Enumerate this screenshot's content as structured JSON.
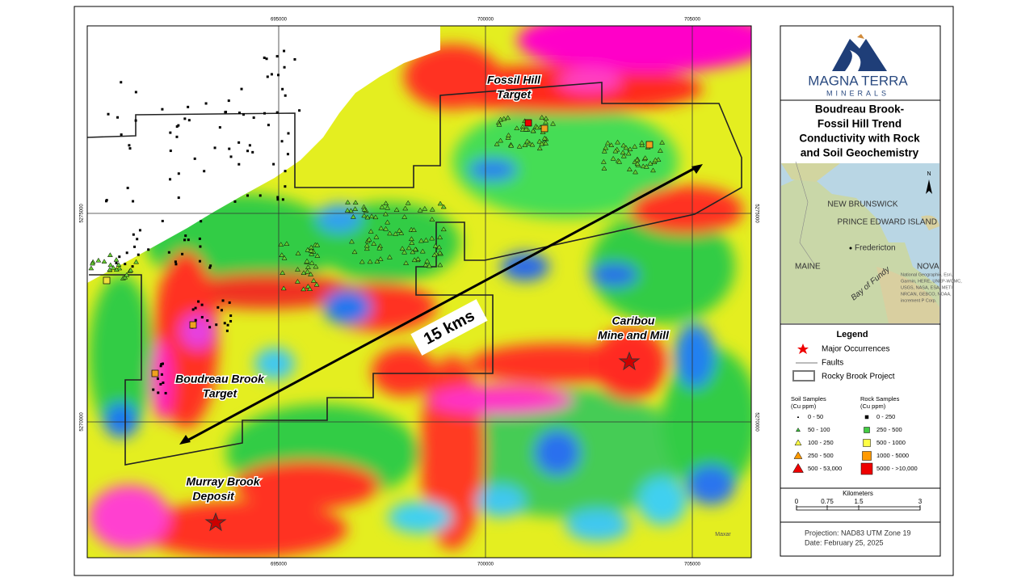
{
  "map": {
    "grid_labels": {
      "top": [
        "695000",
        "700000",
        "705000"
      ],
      "bottom": [
        "695000",
        "700000",
        "705000"
      ],
      "left": [
        "5275000",
        "5270000"
      ],
      "right": [
        "5275000",
        "5270000"
      ]
    },
    "labels": {
      "fossil_hill": [
        "Fossil Hill",
        "Target"
      ],
      "boudreau": [
        "Boudreau Brook",
        "Target"
      ],
      "caribou": [
        "Caribou",
        "Mine and Mill"
      ],
      "murray": [
        "Murray Brook",
        "Deposit"
      ],
      "distance": "15 kms",
      "credit": "Maxar"
    }
  },
  "panel": {
    "logo": {
      "name": "MAGNA TERRA",
      "sub": "MINERALS"
    },
    "title": [
      "Boudreau Brook-",
      "Fossil Hill Trend",
      "Conductivity with Rock",
      "and Soil Geochemistry"
    ],
    "inset": {
      "province": "NEW BRUNSWICK",
      "city": "Fredericton",
      "state": "MAINE",
      "pei": "PRINCE EDWARD ISLAND",
      "nova": "NOVA",
      "bay": "Bay of Fundy",
      "attribution": [
        "National Geographic, Esri,",
        "Garmin, HERE, UNEP-WCMC,",
        "USGS, NASA, ESA, METI,",
        "NRCAN, GEBCO, NOAA,",
        "increment P Corp."
      ],
      "north": "N"
    },
    "legend": {
      "title": "Legend",
      "items": [
        "Major Occurrences",
        "Faults",
        "Rocky Brook Project"
      ],
      "soil": {
        "title": [
          "Soil Samples",
          "(Cu ppm)"
        ],
        "classes": [
          "0 - 50",
          "50 - 100",
          "100 - 250",
          "250 - 500",
          "500 - 53,000"
        ]
      },
      "rock": {
        "title": [
          "Rock Samples",
          "(Cu ppm)"
        ],
        "classes": [
          "0 - 250",
          "250 - 500",
          "500 - 1000",
          "1000 - 5000",
          "5000 - >10,000"
        ]
      }
    },
    "scale": {
      "title": "Kilometers",
      "ticks": [
        "0",
        "0.75",
        "1.5",
        "3"
      ]
    },
    "projection": [
      "Projection: NAD83 UTM Zone 19",
      "Date: February 25, 2025"
    ]
  }
}
